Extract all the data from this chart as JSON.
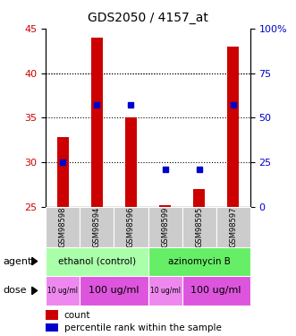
{
  "title": "GDS2050 / 4157_at",
  "samples": [
    "GSM98598",
    "GSM98594",
    "GSM98596",
    "GSM98599",
    "GSM98595",
    "GSM98597"
  ],
  "count_bottom": [
    25,
    25,
    25,
    25,
    25,
    25
  ],
  "count_top": [
    32.8,
    44,
    35,
    25.2,
    27,
    43
  ],
  "percentile": [
    25,
    57,
    57,
    21,
    21,
    57
  ],
  "ylim_left": [
    25,
    45
  ],
  "ylim_right": [
    0,
    100
  ],
  "yticks_left": [
    25,
    30,
    35,
    40,
    45
  ],
  "yticks_right": [
    0,
    25,
    50,
    75,
    100
  ],
  "bar_color": "#cc0000",
  "dot_color": "#0000cc",
  "agent_groups": [
    {
      "text": "ethanol (control)",
      "cols": [
        0,
        1,
        2
      ],
      "color": "#aaffaa"
    },
    {
      "text": "azinomycin B",
      "cols": [
        3,
        4,
        5
      ],
      "color": "#66ee66"
    }
  ],
  "dose_groups": [
    {
      "text": "10 ug/ml",
      "cols": [
        0
      ],
      "color": "#ee88ee",
      "small": true
    },
    {
      "text": "100 ug/ml",
      "cols": [
        1,
        2
      ],
      "color": "#dd55dd",
      "small": false
    },
    {
      "text": "10 ug/ml",
      "cols": [
        3
      ],
      "color": "#ee88ee",
      "small": true
    },
    {
      "text": "100 ug/ml",
      "cols": [
        4,
        5
      ],
      "color": "#dd55dd",
      "small": false
    }
  ],
  "grid_yticks": [
    30,
    35,
    40
  ],
  "left_axis_color": "#cc0000",
  "right_axis_color": "#0000cc",
  "bar_width": 0.35
}
